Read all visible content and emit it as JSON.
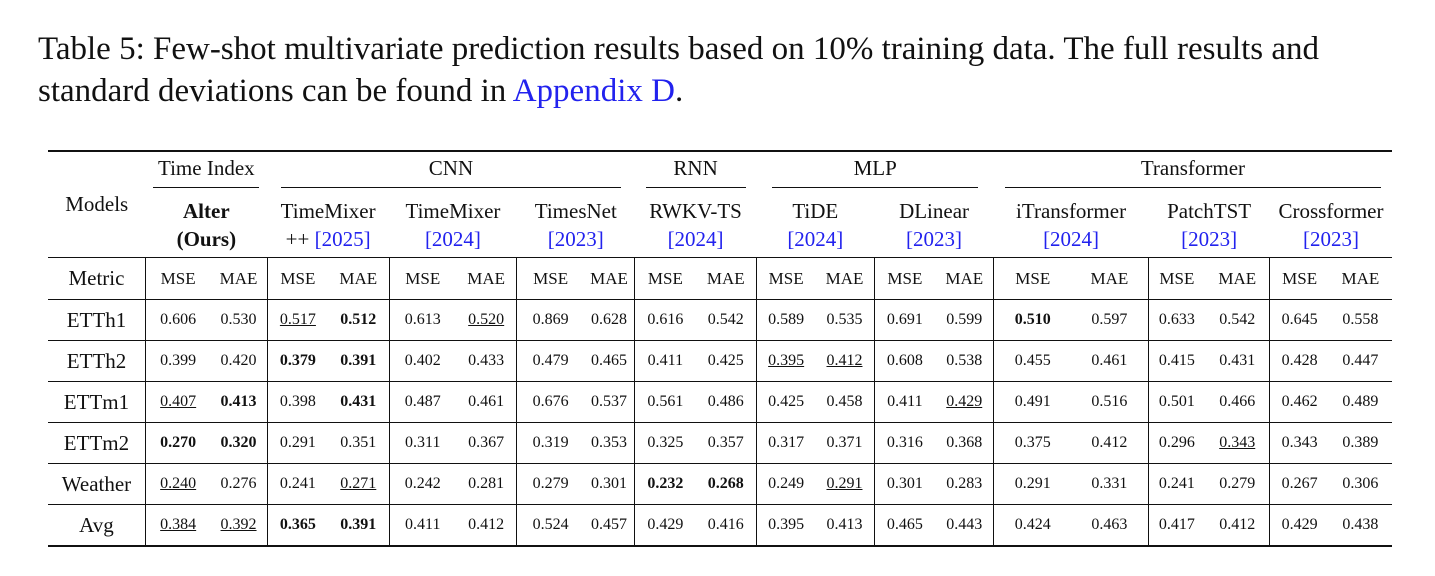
{
  "caption": {
    "text": "Table 5: Few-shot multivariate prediction results based on 10% training data. The full results and standard deviations can be found in ",
    "link": "Appendix D",
    "end": "."
  },
  "header": {
    "models_label": "Models",
    "metric_label": "Metric",
    "groups": [
      "Time Index",
      "CNN",
      "RNN",
      "MLP",
      "Transformer"
    ],
    "models": [
      {
        "line1": "Alter",
        "line2": "(Ours)",
        "cite": ""
      },
      {
        "line1": "TimeMixer",
        "line2": "++ ",
        "cite": "[2025]"
      },
      {
        "line1": "TimeMixer",
        "line2": "",
        "cite": "[2024]"
      },
      {
        "line1": "TimesNet",
        "line2": "",
        "cite": "[2023]"
      },
      {
        "line1": "RWKV-TS",
        "line2": "",
        "cite": "[2024]"
      },
      {
        "line1": "TiDE",
        "line2": "",
        "cite": "[2024]"
      },
      {
        "line1": "DLinear",
        "line2": "",
        "cite": "[2023]"
      },
      {
        "line1": "iTransformer",
        "line2": "",
        "cite": "[2024]"
      },
      {
        "line1": "PatchTST",
        "line2": "",
        "cite": "[2023]"
      },
      {
        "line1": "Crossformer",
        "line2": "",
        "cite": "[2023]"
      }
    ],
    "mse": "MSE",
    "mae": "MAE"
  },
  "rows": [
    {
      "name": "ETTh1",
      "cells": [
        "0.606",
        "0.530",
        "0.517",
        "0.512",
        "0.613",
        "0.520",
        "0.869",
        "0.628",
        "0.616",
        "0.542",
        "0.589",
        "0.535",
        "0.691",
        "0.599",
        "0.510",
        "0.597",
        "0.633",
        "0.542",
        "0.645",
        "0.558"
      ]
    },
    {
      "name": "ETTh2",
      "cells": [
        "0.399",
        "0.420",
        "0.379",
        "0.391",
        "0.402",
        "0.433",
        "0.479",
        "0.465",
        "0.411",
        "0.425",
        "0.395",
        "0.412",
        "0.608",
        "0.538",
        "0.455",
        "0.461",
        "0.415",
        "0.431",
        "0.428",
        "0.447"
      ]
    },
    {
      "name": "ETTm1",
      "cells": [
        "0.407",
        "0.413",
        "0.398",
        "0.431",
        "0.487",
        "0.461",
        "0.676",
        "0.537",
        "0.561",
        "0.486",
        "0.425",
        "0.458",
        "0.411",
        "0.429",
        "0.491",
        "0.516",
        "0.501",
        "0.466",
        "0.462",
        "0.489"
      ]
    },
    {
      "name": "ETTm2",
      "cells": [
        "0.270",
        "0.320",
        "0.291",
        "0.351",
        "0.311",
        "0.367",
        "0.319",
        "0.353",
        "0.325",
        "0.357",
        "0.317",
        "0.371",
        "0.316",
        "0.368",
        "0.375",
        "0.412",
        "0.296",
        "0.343",
        "0.343",
        "0.389"
      ]
    },
    {
      "name": "Weather",
      "cells": [
        "0.240",
        "0.276",
        "0.241",
        "0.271",
        "0.242",
        "0.281",
        "0.279",
        "0.301",
        "0.232",
        "0.268",
        "0.249",
        "0.291",
        "0.301",
        "0.283",
        "0.291",
        "0.331",
        "0.241",
        "0.279",
        "0.267",
        "0.306"
      ]
    },
    {
      "name": "Avg",
      "cells": [
        "0.384",
        "0.392",
        "0.365",
        "0.391",
        "0.411",
        "0.412",
        "0.524",
        "0.457",
        "0.429",
        "0.416",
        "0.395",
        "0.413",
        "0.465",
        "0.443",
        "0.424",
        "0.463",
        "0.417",
        "0.412",
        "0.429",
        "0.438"
      ]
    }
  ],
  "bold": [
    [
      3,
      14
    ],
    [
      2,
      3
    ],
    [
      3,
      1
    ],
    [
      0,
      1
    ],
    [
      8,
      9
    ],
    [
      2,
      3
    ]
  ],
  "underline": [
    [
      2,
      5
    ],
    [
      10,
      11
    ],
    [
      0,
      13
    ],
    [
      17
    ],
    [
      0,
      3,
      11
    ],
    [
      0,
      1
    ]
  ]
}
